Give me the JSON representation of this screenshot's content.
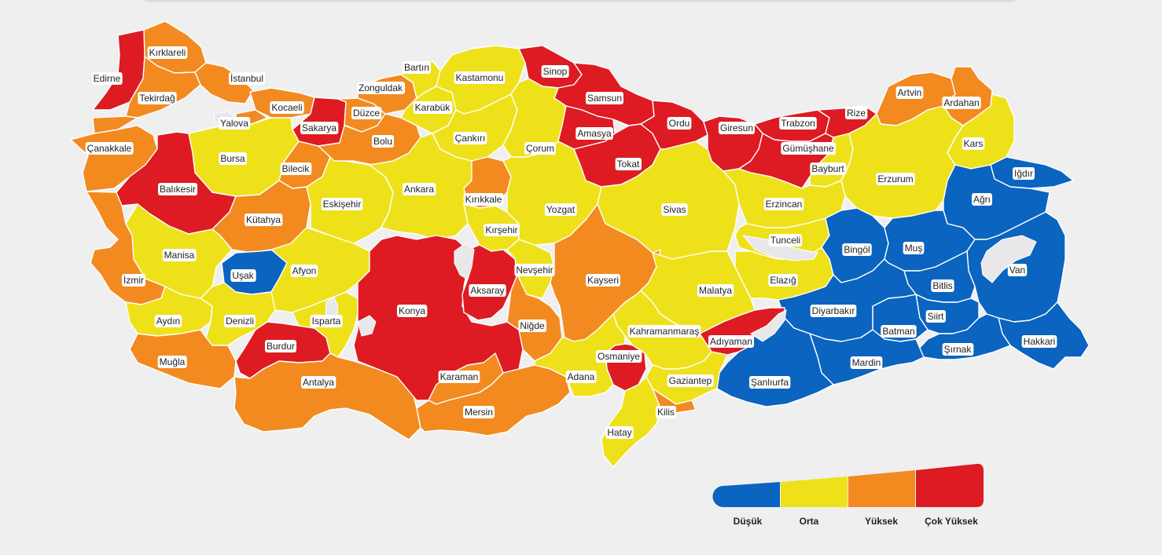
{
  "colors": {
    "low": "#0a64c0",
    "medium": "#eee11a",
    "high": "#f38a20",
    "very_high": "#de1b22",
    "lake": "#e8e8ea"
  },
  "legend": [
    {
      "key": "low",
      "label": "Düşük"
    },
    {
      "key": "medium",
      "label": "Orta"
    },
    {
      "key": "high",
      "label": "Yüksek"
    },
    {
      "key": "very_high",
      "label": "Çok Yüksek"
    }
  ],
  "provinces": [
    {
      "name": "Kırklareli",
      "risk": "high"
    },
    {
      "name": "Edirne",
      "risk": "very_high"
    },
    {
      "name": "İstanbul",
      "risk": "high"
    },
    {
      "name": "Tekirdağ",
      "risk": "high"
    },
    {
      "name": "Kocaeli",
      "risk": "high"
    },
    {
      "name": "Yalova",
      "risk": "high"
    },
    {
      "name": "Sakarya",
      "risk": "very_high"
    },
    {
      "name": "Çanakkale",
      "risk": "high"
    },
    {
      "name": "Bursa",
      "risk": "medium"
    },
    {
      "name": "Bilecik",
      "risk": "high"
    },
    {
      "name": "Balıkesir",
      "risk": "very_high"
    },
    {
      "name": "Kütahya",
      "risk": "high"
    },
    {
      "name": "Manisa",
      "risk": "medium"
    },
    {
      "name": "İzmir",
      "risk": "high"
    },
    {
      "name": "Uşak",
      "risk": "low"
    },
    {
      "name": "Afyon",
      "risk": "medium"
    },
    {
      "name": "Aydın",
      "risk": "medium"
    },
    {
      "name": "Denizli",
      "risk": "medium"
    },
    {
      "name": "Muğla",
      "risk": "high"
    },
    {
      "name": "Burdur",
      "risk": "very_high"
    },
    {
      "name": "Isparta",
      "risk": "medium"
    },
    {
      "name": "Antalya",
      "risk": "high"
    },
    {
      "name": "Eskişehir",
      "risk": "medium"
    },
    {
      "name": "Ankara",
      "risk": "medium"
    },
    {
      "name": "Bartın",
      "risk": "medium"
    },
    {
      "name": "Zonguldak",
      "risk": "high"
    },
    {
      "name": "Karabük",
      "risk": "medium"
    },
    {
      "name": "Düzce",
      "risk": "high"
    },
    {
      "name": "Bolu",
      "risk": "high"
    },
    {
      "name": "Kastamonu",
      "risk": "medium"
    },
    {
      "name": "Çankırı",
      "risk": "medium"
    },
    {
      "name": "Kırıkkale",
      "risk": "high"
    },
    {
      "name": "Kırşehir",
      "risk": "medium"
    },
    {
      "name": "Konya",
      "risk": "very_high"
    },
    {
      "name": "Aksaray",
      "risk": "very_high"
    },
    {
      "name": "Karaman",
      "risk": "high"
    },
    {
      "name": "Mersin",
      "risk": "high"
    },
    {
      "name": "Niğde",
      "risk": "high"
    },
    {
      "name": "Nevşehir",
      "risk": "medium"
    },
    {
      "name": "Sinop",
      "risk": "very_high"
    },
    {
      "name": "Samsun",
      "risk": "very_high"
    },
    {
      "name": "Çorum",
      "risk": "medium"
    },
    {
      "name": "Amasya",
      "risk": "very_high"
    },
    {
      "name": "Tokat",
      "risk": "very_high"
    },
    {
      "name": "Yozgat",
      "risk": "medium"
    },
    {
      "name": "Ordu",
      "risk": "very_high"
    },
    {
      "name": "Giresun",
      "risk": "very_high"
    },
    {
      "name": "Trabzon",
      "risk": "very_high"
    },
    {
      "name": "Rize",
      "risk": "very_high"
    },
    {
      "name": "Gümüşhane",
      "risk": "very_high"
    },
    {
      "name": "Artvin",
      "risk": "high"
    },
    {
      "name": "Ardahan",
      "risk": "high"
    },
    {
      "name": "Kars",
      "risk": "medium"
    },
    {
      "name": "Bayburt",
      "risk": "medium"
    },
    {
      "name": "Erzurum",
      "risk": "medium"
    },
    {
      "name": "Iğdır",
      "risk": "low"
    },
    {
      "name": "Ağrı",
      "risk": "low"
    },
    {
      "name": "Sivas",
      "risk": "medium"
    },
    {
      "name": "Erzincan",
      "risk": "medium"
    },
    {
      "name": "Tunceli",
      "risk": "medium"
    },
    {
      "name": "Kayseri",
      "risk": "high"
    },
    {
      "name": "Malatya",
      "risk": "medium"
    },
    {
      "name": "Elazığ",
      "risk": "medium"
    },
    {
      "name": "Bingöl",
      "risk": "low"
    },
    {
      "name": "Muş",
      "risk": "low"
    },
    {
      "name": "Van",
      "risk": "low"
    },
    {
      "name": "Bitlis",
      "risk": "low"
    },
    {
      "name": "Siirt",
      "risk": "low"
    },
    {
      "name": "Batman",
      "risk": "low"
    },
    {
      "name": "Diyarbakır",
      "risk": "low"
    },
    {
      "name": "Hakkari",
      "risk": "low"
    },
    {
      "name": "Şırnak",
      "risk": "low"
    },
    {
      "name": "Mardin",
      "risk": "low"
    },
    {
      "name": "Şanlıurfa",
      "risk": "low"
    },
    {
      "name": "Adıyaman",
      "risk": "very_high"
    },
    {
      "name": "Kahramanmaraş",
      "risk": "medium"
    },
    {
      "name": "Osmaniye",
      "risk": "very_high"
    },
    {
      "name": "Adana",
      "risk": "medium"
    },
    {
      "name": "Gaziantep",
      "risk": "medium"
    },
    {
      "name": "Kilis",
      "risk": "high"
    },
    {
      "name": "Hatay",
      "risk": "medium"
    }
  ]
}
